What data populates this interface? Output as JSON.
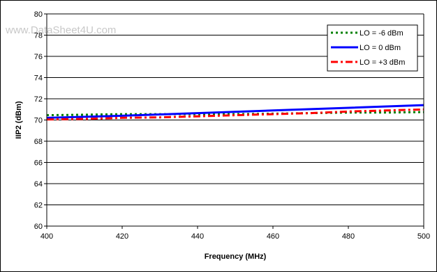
{
  "watermark": "www.DataSheet4U.com",
  "chart_data": {
    "type": "line",
    "title": "",
    "xlabel": "Frequency (MHz)",
    "ylabel": "IIP2 (dBm)",
    "xlim": [
      400,
      500
    ],
    "ylim": [
      60,
      80
    ],
    "xticks": [
      400,
      420,
      440,
      460,
      480,
      500
    ],
    "yticks": [
      60,
      62,
      64,
      66,
      68,
      70,
      72,
      74,
      76,
      78,
      80
    ],
    "grid": "horizontal",
    "legend_position": "top-right",
    "series": [
      {
        "name": "LO = -6 dBm",
        "color": "#008000",
        "style": "dotted",
        "x": [
          400,
          410,
          420,
          430,
          440,
          450,
          460,
          470,
          480,
          490,
          500
        ],
        "y": [
          70.45,
          70.5,
          70.55,
          70.55,
          70.55,
          70.55,
          70.6,
          70.65,
          70.7,
          70.7,
          70.75
        ]
      },
      {
        "name": "LO = 0 dBm",
        "color": "#0000ff",
        "style": "solid",
        "x": [
          400,
          420,
          440,
          460,
          480,
          500
        ],
        "y": [
          70.2,
          70.4,
          70.65,
          70.9,
          71.15,
          71.4
        ]
      },
      {
        "name": "LO = +3 dBm",
        "color": "#ff0000",
        "style": "dashdot",
        "x": [
          400,
          410,
          420,
          430,
          440,
          450,
          460,
          470,
          480,
          490,
          500
        ],
        "y": [
          70.05,
          70.1,
          70.2,
          70.25,
          70.35,
          70.45,
          70.55,
          70.65,
          70.8,
          70.9,
          71.0
        ]
      }
    ]
  }
}
